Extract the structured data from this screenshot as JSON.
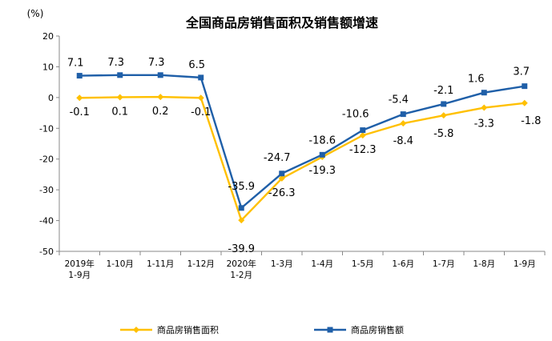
{
  "chart_data": {
    "type": "line",
    "title": "全国商品房销售面积及销售额增速",
    "ylabel": "(%)",
    "xlabel": "",
    "ylim": [
      -50,
      20
    ],
    "yticks": [
      20,
      10,
      0,
      -10,
      -20,
      -30,
      -40,
      -50
    ],
    "categories": [
      [
        "2019年",
        "1-9月"
      ],
      [
        "1-10月"
      ],
      [
        "1-11月"
      ],
      [
        "1-12月"
      ],
      [
        "2020年",
        "1-2月"
      ],
      [
        "1-3月"
      ],
      [
        "1-4月"
      ],
      [
        "1-5月"
      ],
      [
        "1-6月"
      ],
      [
        "1-7月"
      ],
      [
        "1-8月"
      ],
      [
        "1-9月"
      ]
    ],
    "series": [
      {
        "name": "商品房销售面积",
        "color": "#FFC000",
        "marker": "diamond",
        "values": [
          -0.1,
          0.1,
          0.2,
          -0.1,
          -39.9,
          -26.3,
          -19.3,
          -12.3,
          -8.4,
          -5.8,
          -3.3,
          -1.8
        ],
        "labels": [
          "-0.1",
          "0.1",
          "0.2",
          "-0.1",
          "-39.9",
          "-26.3",
          "-19.3",
          "-12.3",
          "-8.4",
          "-5.8",
          "-3.3",
          "-1.8"
        ],
        "label_pos": "below"
      },
      {
        "name": "商品房销售额",
        "color": "#1F5FA8",
        "marker": "square",
        "values": [
          7.1,
          7.3,
          7.3,
          6.5,
          -35.9,
          -24.7,
          -18.6,
          -10.6,
          -5.4,
          -2.1,
          1.6,
          3.7
        ],
        "labels": [
          "7.1",
          "7.3",
          "7.3",
          "6.5",
          "-35.9",
          "-24.7",
          "-18.6",
          "-10.6",
          "-5.4",
          "-2.1",
          "1.6",
          "3.7"
        ],
        "label_pos": "above"
      }
    ],
    "grid": false,
    "legend_position": "bottom"
  }
}
